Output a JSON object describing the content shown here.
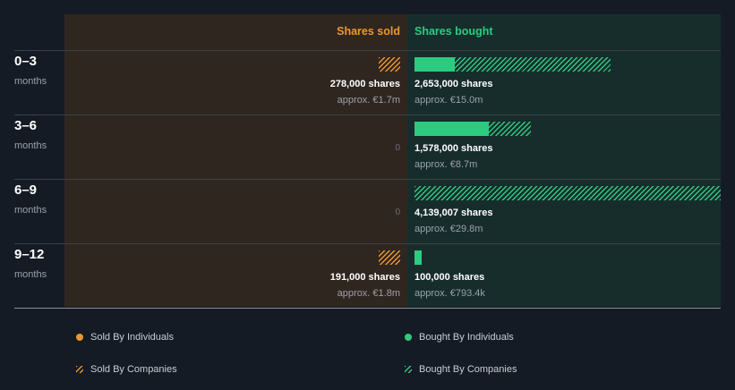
{
  "colors": {
    "sold": "#f0962a",
    "bought": "#2dcb7f",
    "sold_panel": "#2f2620",
    "bought_panel": "#172d2c",
    "background": "#151b24"
  },
  "headers": {
    "sold": "Shares sold",
    "bought": "Shares bought"
  },
  "chart_data": {
    "type": "bar",
    "orientation": "horizontal-diverging",
    "categories": [
      "0–3",
      "3–6",
      "6–9",
      "9–12"
    ],
    "category_unit": "months",
    "series": [
      {
        "name": "Sold By Individuals",
        "values": [
          0,
          0,
          0,
          0
        ]
      },
      {
        "name": "Sold By Companies",
        "values": [
          278000,
          0,
          0,
          191000
        ]
      },
      {
        "name": "Bought By Individuals",
        "values": [
          550000,
          1000000,
          0,
          100000
        ]
      },
      {
        "name": "Bought By Companies",
        "values": [
          2103000,
          578000,
          4139007,
          0
        ]
      }
    ],
    "rows": [
      {
        "period": "0–3",
        "unit": "months",
        "sold": {
          "shares": "278,000 shares",
          "approx": "approx. €1.7m",
          "zero": ""
        },
        "bought": {
          "shares": "2,653,000 shares",
          "approx": "approx. €15.0m"
        }
      },
      {
        "period": "3–6",
        "unit": "months",
        "sold": {
          "shares": "",
          "approx": "",
          "zero": "0"
        },
        "bought": {
          "shares": "1,578,000 shares",
          "approx": "approx. €8.7m"
        }
      },
      {
        "period": "6–9",
        "unit": "months",
        "sold": {
          "shares": "",
          "approx": "",
          "zero": "0"
        },
        "bought": {
          "shares": "4,139,007 shares",
          "approx": "approx. €29.8m"
        }
      },
      {
        "period": "9–12",
        "unit": "months",
        "sold": {
          "shares": "191,000 shares",
          "approx": "approx. €1.8m",
          "zero": ""
        },
        "bought": {
          "shares": "100,000 shares",
          "approx": "approx. €793.4k"
        }
      }
    ],
    "legend": [
      {
        "label": "Sold By Individuals",
        "style": "dot",
        "color": "#f0962a"
      },
      {
        "label": "Bought By Individuals",
        "style": "dot",
        "color": "#2dcb7f"
      },
      {
        "label": "Sold By Companies",
        "style": "hatch",
        "color": "#f0962a"
      },
      {
        "label": "Bought By Companies",
        "style": "hatch",
        "color": "#2dcb7f"
      }
    ]
  }
}
